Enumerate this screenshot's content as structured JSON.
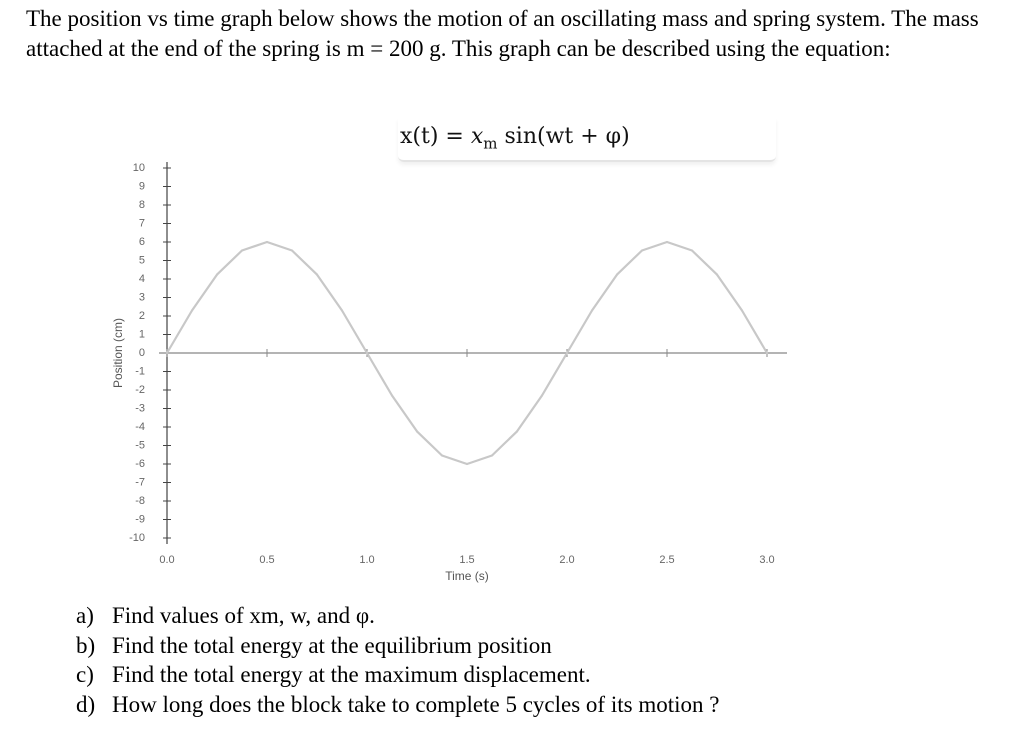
{
  "problem": {
    "intro": "The position vs time graph below shows the motion of an oscillating mass and spring system. The mass attached at the end of the spring is m = 200 g. This graph can be described using the equation:",
    "equation": {
      "lhs": "x(t) = ",
      "var": "x",
      "sub": "m",
      "rhs": " sin(wt + φ)"
    }
  },
  "chart_data": {
    "type": "line",
    "xlabel": "Time (s)",
    "ylabel": "Position (cm)",
    "xlim": [
      0.0,
      3.0
    ],
    "ylim": [
      -10,
      10
    ],
    "x_ticks": [
      "0.0",
      "0.5",
      "1.0",
      "1.5",
      "2.0",
      "2.5",
      "3.0"
    ],
    "y_ticks": [
      "10",
      "9",
      "8",
      "7",
      "6",
      "5",
      "4",
      "3",
      "2",
      "1",
      "0",
      "-1",
      "-2",
      "-3",
      "-4",
      "-5",
      "-6",
      "-7",
      "-8",
      "-9",
      "-10"
    ],
    "grid": false,
    "series": [
      {
        "x": [
          0.0,
          0.125,
          0.25,
          0.375,
          0.5,
          0.625,
          0.75,
          0.875,
          1.0,
          1.125,
          1.25,
          1.375,
          1.5,
          1.625,
          1.75,
          1.875,
          2.0,
          2.125,
          2.25,
          2.375,
          2.5,
          2.625,
          2.75,
          2.875,
          3.0
        ],
        "y": [
          0,
          2.3,
          4.24,
          5.54,
          6.0,
          5.54,
          4.24,
          2.3,
          0,
          -2.3,
          -4.24,
          -5.54,
          -6.0,
          -5.54,
          -4.24,
          -2.3,
          0,
          2.3,
          4.24,
          5.54,
          6.0,
          5.54,
          4.24,
          2.3,
          0
        ]
      }
    ]
  },
  "questions": [
    {
      "label": "a)",
      "text": "Find values of xm, w, and φ."
    },
    {
      "label": "b)",
      "text": "Find the total energy at the equilibrium position"
    },
    {
      "label": "c)",
      "text": "Find the total energy at the maximum displacement."
    },
    {
      "label": "d)",
      "text": "How long does the block take to complete 5 cycles of its motion ?"
    }
  ]
}
